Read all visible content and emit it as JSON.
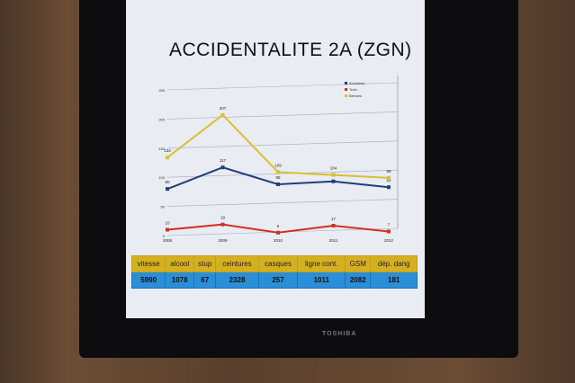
{
  "tv_brand": "TOSHIBA",
  "slide_title": "ACCIDENTALITE 2A (ZGN)",
  "chart_data": {
    "type": "line",
    "title": "ACCIDENTALITE 2A (ZGN)",
    "categories": [
      "2008",
      "2009",
      "2010",
      "2011",
      "2012"
    ],
    "ylim": [
      0,
      250
    ],
    "yticks": [
      "0",
      "50",
      "100",
      "150",
      "200",
      "250"
    ],
    "grid": true,
    "legend": "top-right",
    "series": [
      {
        "name": "Accidents",
        "color": "#1f3f7a",
        "values": [
          80,
          117,
          88,
          93,
          83
        ],
        "labels": [
          "80",
          "117",
          "88",
          "93",
          "83"
        ]
      },
      {
        "name": "Tués",
        "color": "#d03020",
        "values": [
          10,
          19,
          5,
          17,
          7
        ],
        "labels": [
          "10",
          "19",
          "5",
          "17",
          "7"
        ]
      },
      {
        "name": "Blessés",
        "color": "#d8c030",
        "values": [
          134,
          207,
          109,
          104,
          99
        ],
        "labels": [
          "134",
          "207",
          "109",
          "104",
          "99"
        ]
      }
    ]
  },
  "table": {
    "headers": [
      "vitesse",
      "alcool",
      "stup",
      "ceintures",
      "casques",
      "ligne cont.",
      "GSM",
      "dép. dang"
    ],
    "values": [
      "5990",
      "1078",
      "67",
      "2328",
      "257",
      "1011",
      "2082",
      "181"
    ]
  }
}
